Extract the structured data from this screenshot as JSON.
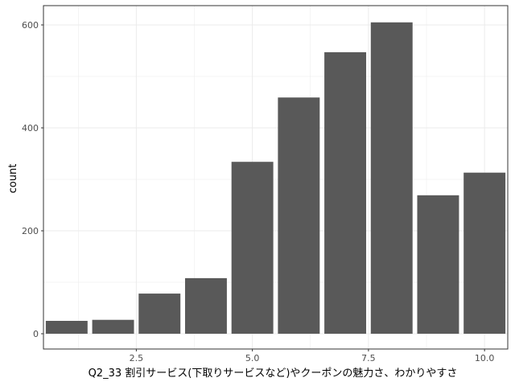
{
  "chart_data": {
    "type": "bar",
    "x": [
      1,
      2,
      3,
      4,
      5,
      6,
      7,
      8,
      9,
      10
    ],
    "values": [
      25,
      27,
      78,
      108,
      334,
      459,
      547,
      605,
      269,
      313
    ],
    "xlabel": "Q2_33 割引サービス(下取りサービスなど)やクーポンの魅力さ、わかりやすさ",
    "ylabel": "count",
    "xlim": [
      0.5,
      10.5
    ],
    "ylim": [
      0,
      620
    ],
    "xticks": [
      2.5,
      5.0,
      7.5,
      10.0
    ],
    "xtick_labels": [
      "2.5",
      "5.0",
      "7.5",
      "10.0"
    ],
    "yticks": [
      0,
      200,
      400,
      600
    ],
    "ytick_labels": [
      "0",
      "200",
      "400",
      "600"
    ],
    "grid": true,
    "bar_color": "#595959",
    "grid_color": "#ebebeb",
    "panel_border_color": "#333333"
  }
}
